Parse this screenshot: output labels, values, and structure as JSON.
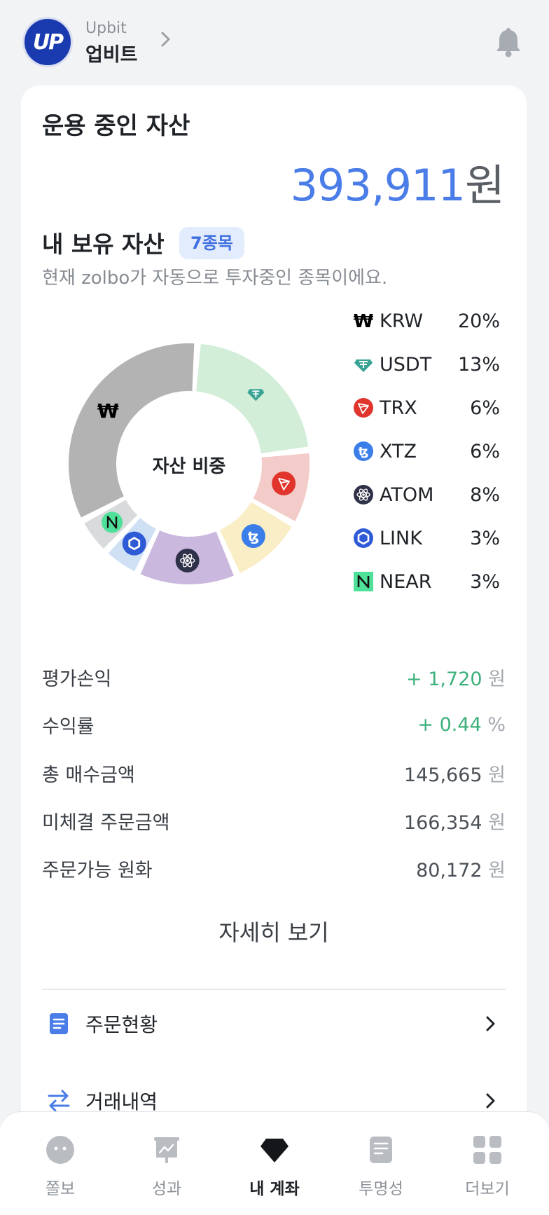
{
  "header": {
    "logo_text": "UP",
    "exchange_en": "Upbit",
    "exchange_ko": "업비트"
  },
  "assets": {
    "title": "운용 중인 자산",
    "total_value": "393,911",
    "total_unit": "원"
  },
  "holdings": {
    "title": "내 보유 자산",
    "count_badge": "7종목",
    "subtitle": "현재 zolbo가 자동으로 투자중인 종목이에요.",
    "chart_center_label": "자산 비중"
  },
  "chart_data": {
    "type": "pie",
    "title": "자산 비중",
    "categories": [
      "KRW",
      "USDT",
      "TRX",
      "XTZ",
      "ATOM",
      "LINK",
      "NEAR"
    ],
    "values": [
      20,
      13,
      6,
      6,
      8,
      3,
      3
    ],
    "unit": "%",
    "colors": [
      "#b3b3b3",
      "#d2eed8",
      "#f3cbc8",
      "#faeec7",
      "#cbb8de",
      "#cfe0f5",
      "#d9dadb"
    ],
    "icons": [
      "won-icon",
      "tether-icon",
      "tron-icon",
      "tezos-icon",
      "cosmos-icon",
      "chainlink-icon",
      "near-icon"
    ]
  },
  "legend": [
    {
      "name": "KRW",
      "pct": "20%",
      "icon": "won-icon"
    },
    {
      "name": "USDT",
      "pct": "13%",
      "icon": "tether-icon"
    },
    {
      "name": "TRX",
      "pct": "6%",
      "icon": "tron-icon"
    },
    {
      "name": "XTZ",
      "pct": "6%",
      "icon": "tezos-icon"
    },
    {
      "name": "ATOM",
      "pct": "8%",
      "icon": "cosmos-icon"
    },
    {
      "name": "LINK",
      "pct": "3%",
      "icon": "chainlink-icon"
    },
    {
      "name": "NEAR",
      "pct": "3%",
      "icon": "near-icon"
    }
  ],
  "stats": [
    {
      "label": "평가손익",
      "value": "+ 1,720",
      "unit": "원",
      "tone": "positive"
    },
    {
      "label": "수익률",
      "value": "+ 0.44",
      "unit": "%",
      "tone": "positive"
    },
    {
      "label": "총 매수금액",
      "value": "145,665",
      "unit": "원",
      "tone": "neutral"
    },
    {
      "label": "미체결 주문금액",
      "value": "166,354",
      "unit": "원",
      "tone": "neutral"
    },
    {
      "label": "주문가능 원화",
      "value": "80,172",
      "unit": "원",
      "tone": "neutral"
    }
  ],
  "detail_button": "자세히 보기",
  "menu": [
    {
      "label": "주문현황",
      "icon": "document-icon"
    },
    {
      "label": "거래내역",
      "icon": "transfer-arrows-icon"
    }
  ],
  "tabs": [
    {
      "label": "쫄보",
      "icon": "face-icon",
      "active": false
    },
    {
      "label": "성과",
      "icon": "chart-board-icon",
      "active": false
    },
    {
      "label": "내 계좌",
      "icon": "diamond-icon",
      "active": true
    },
    {
      "label": "투명성",
      "icon": "report-icon",
      "active": false
    },
    {
      "label": "더보기",
      "icon": "grid-icon",
      "active": false
    }
  ],
  "colors": {
    "accent_blue": "#4a7de8",
    "positive_green": "#3bb07a",
    "badge_bg": "#e3ecfc",
    "page_bg": "#f2f3f5"
  }
}
